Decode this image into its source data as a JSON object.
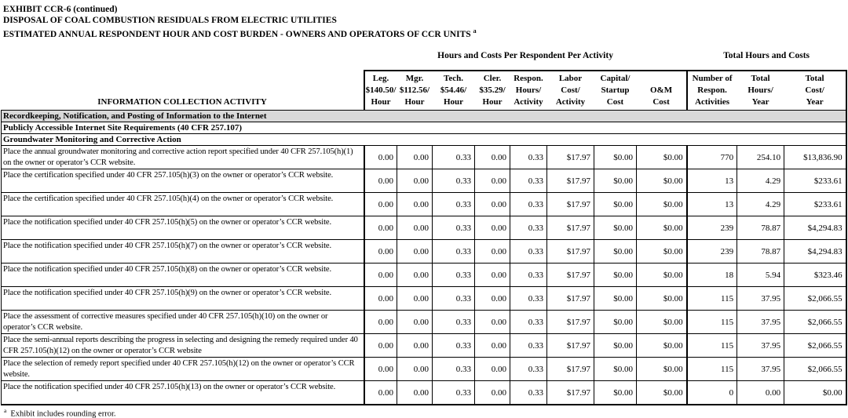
{
  "title": {
    "line1": "EXHIBIT CCR-6 (continued)",
    "line2": "DISPOSAL OF COAL COMBUSTION RESIDUALS FROM ELECTRIC UTILITIES",
    "line3": "ESTIMATED ANNUAL RESPONDENT HOUR AND COST BURDEN - OWNERS AND OPERATORS OF CCR UNITS",
    "line3_superscript": "a"
  },
  "table": {
    "group_headers": {
      "per_activity": "Hours and Costs Per Respondent Per Activity",
      "totals": "Total Hours and Costs"
    },
    "columns": [
      {
        "id": "activity",
        "lines": [
          "INFORMATION COLLECTION ACTIVITY"
        ]
      },
      {
        "id": "legal",
        "lines": [
          "Leg.",
          "$140.50/",
          "Hour"
        ]
      },
      {
        "id": "managerial",
        "lines": [
          "Mgr.",
          "$112.56/",
          "Hour"
        ]
      },
      {
        "id": "technical",
        "lines": [
          "Tech.",
          "$54.46/",
          "Hour"
        ]
      },
      {
        "id": "clerical",
        "lines": [
          "Cler.",
          "$35.29/",
          "Hour"
        ]
      },
      {
        "id": "respon-hours",
        "lines": [
          "Respon.",
          "Hours/",
          "Activity"
        ]
      },
      {
        "id": "labor-cost",
        "lines": [
          "Labor",
          "Cost/",
          "Activity"
        ]
      },
      {
        "id": "capital-startup",
        "lines": [
          "Capital/",
          "Startup",
          "Cost"
        ]
      },
      {
        "id": "om-cost",
        "lines": [
          "O&M",
          "Cost"
        ]
      },
      {
        "id": "num-activities",
        "lines": [
          "Number of",
          "Respon.",
          "Activities"
        ]
      },
      {
        "id": "total-hours",
        "lines": [
          "Total",
          "Hours/",
          "Year"
        ]
      },
      {
        "id": "total-cost",
        "lines": [
          "Total",
          "Cost/",
          "Year"
        ]
      }
    ],
    "rows": [
      {
        "type": "section",
        "shaded": true,
        "label": "Recordkeeping, Notification, and Posting of Information to the Internet"
      },
      {
        "type": "section",
        "shaded": false,
        "label": "Publicly Accessible Internet Site Requirements (40 CFR 257.107)"
      },
      {
        "type": "section",
        "shaded": false,
        "label": "Groundwater Monitoring and Corrective Action"
      },
      {
        "type": "data",
        "activity": "Place the annual groundwater monitoring and corrective action report specified under 40 CFR 257.105(h)(1) on the owner or operator’s CCR website.",
        "values": [
          "0.00",
          "0.00",
          "0.33",
          "0.00",
          "0.33",
          "$17.97",
          "$0.00",
          "$0.00",
          "770",
          "254.10",
          "$13,836.90"
        ]
      },
      {
        "type": "data",
        "activity": "Place the certification specified under 40 CFR 257.105(h)(3) on the owner or operator’s CCR website.",
        "values": [
          "0.00",
          "0.00",
          "0.33",
          "0.00",
          "0.33",
          "$17.97",
          "$0.00",
          "$0.00",
          "13",
          "4.29",
          "$233.61"
        ]
      },
      {
        "type": "data",
        "activity": "Place the certification specified under 40 CFR 257.105(h)(4) on the owner or operator’s CCR website.",
        "values": [
          "0.00",
          "0.00",
          "0.33",
          "0.00",
          "0.33",
          "$17.97",
          "$0.00",
          "$0.00",
          "13",
          "4.29",
          "$233.61"
        ]
      },
      {
        "type": "data",
        "activity": "Place the notification specified under 40 CFR 257.105(h)(5) on the owner or operator’s CCR website.",
        "values": [
          "0.00",
          "0.00",
          "0.33",
          "0.00",
          "0.33",
          "$17.97",
          "$0.00",
          "$0.00",
          "239",
          "78.87",
          "$4,294.83"
        ]
      },
      {
        "type": "data",
        "activity": "Place the notification specified under 40 CFR 257.105(h)(7) on the owner or operator’s CCR website.",
        "values": [
          "0.00",
          "0.00",
          "0.33",
          "0.00",
          "0.33",
          "$17.97",
          "$0.00",
          "$0.00",
          "239",
          "78.87",
          "$4,294.83"
        ]
      },
      {
        "type": "data",
        "activity": "Place the notification specified under 40 CFR 257.105(h)(8) on the owner or operator’s CCR website.",
        "values": [
          "0.00",
          "0.00",
          "0.33",
          "0.00",
          "0.33",
          "$17.97",
          "$0.00",
          "$0.00",
          "18",
          "5.94",
          "$323.46"
        ]
      },
      {
        "type": "data",
        "activity": "Place the notification specified under 40 CFR 257.105(h)(9) on the owner or operator’s CCR website.",
        "values": [
          "0.00",
          "0.00",
          "0.33",
          "0.00",
          "0.33",
          "$17.97",
          "$0.00",
          "$0.00",
          "115",
          "37.95",
          "$2,066.55"
        ]
      },
      {
        "type": "data",
        "activity": "Place the assessment of corrective measures specified under 40 CFR 257.105(h)(10) on the owner or operator’s CCR website.",
        "values": [
          "0.00",
          "0.00",
          "0.33",
          "0.00",
          "0.33",
          "$17.97",
          "$0.00",
          "$0.00",
          "115",
          "37.95",
          "$2,066.55"
        ]
      },
      {
        "type": "data",
        "activity": "Place the semi-annual reports describing the progress in selecting and designing the remedy required under 40 CFR 257.105(h)(12) on the owner or operator’s CCR website",
        "values": [
          "0.00",
          "0.00",
          "0.33",
          "0.00",
          "0.33",
          "$17.97",
          "$0.00",
          "$0.00",
          "115",
          "37.95",
          "$2,066.55"
        ]
      },
      {
        "type": "data",
        "activity": "Place the selection of remedy report specified under 40 CFR 257.105(h)(12) on the owner or operator’s CCR website.",
        "values": [
          "0.00",
          "0.00",
          "0.33",
          "0.00",
          "0.33",
          "$17.97",
          "$0.00",
          "$0.00",
          "115",
          "37.95",
          "$2,066.55"
        ]
      },
      {
        "type": "data",
        "activity": "Place the notification specified under 40 CFR 257.105(h)(13) on the owner or operator’s CCR website.",
        "values": [
          "0.00",
          "0.00",
          "0.33",
          "0.00",
          "0.33",
          "$17.97",
          "$0.00",
          "$0.00",
          "0",
          "0.00",
          "$0.00"
        ]
      }
    ]
  },
  "footnote": {
    "superscript": "a",
    "text": "Exhibit includes rounding error."
  },
  "colors": {
    "text": "#000000",
    "border": "#000000",
    "section_shading": "#d9d9d9",
    "background": "#ffffff"
  }
}
